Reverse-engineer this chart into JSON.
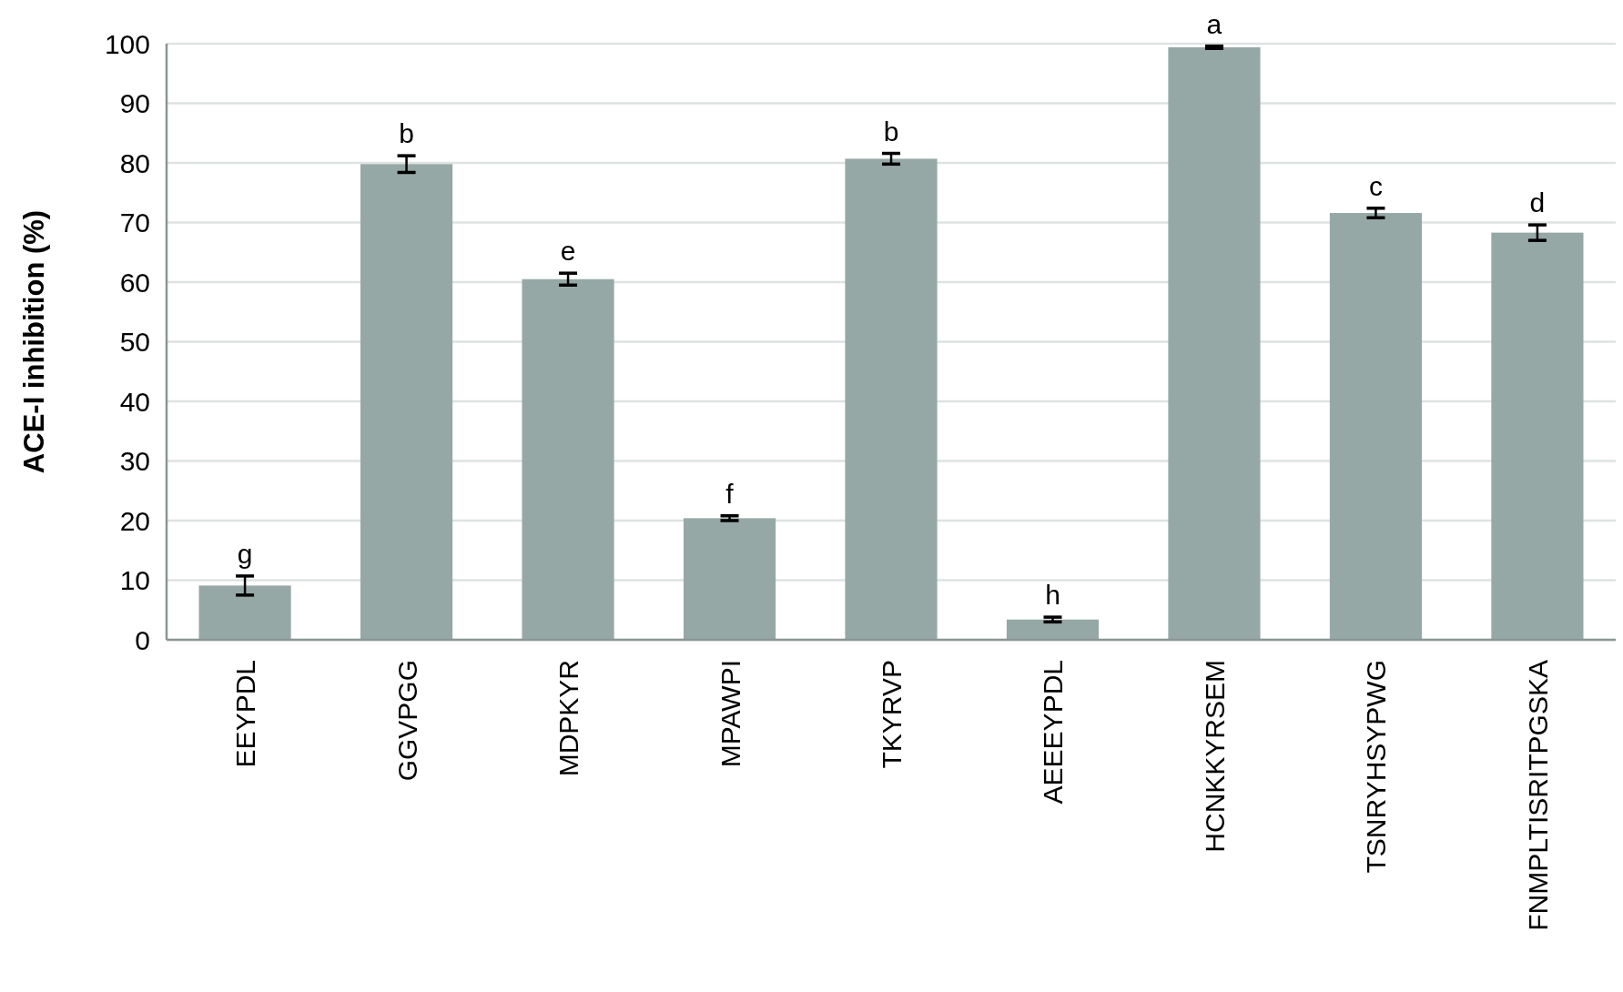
{
  "chart_data": {
    "type": "bar",
    "ylabel": "ACE-I inhibition (%)",
    "categories": [
      "EEYPDL",
      "GGVPGG",
      "MDPKYR",
      "MPAWPI",
      "TKYRVP",
      "AEEEYPDL",
      "HCNKKYRSEM",
      "TSNRYHSYPWG",
      "FNMPLTISRITPGSKA"
    ],
    "values": [
      9.1,
      79.8,
      60.5,
      20.4,
      80.7,
      3.4,
      99.4,
      71.6,
      68.3
    ],
    "errors": [
      1.6,
      1.4,
      1.0,
      0.4,
      0.9,
      0.4,
      0.2,
      0.8,
      1.3
    ],
    "color": "#96a8a6",
    "ylim": [
      0,
      100
    ],
    "yticks": [
      0,
      10,
      20,
      30,
      40,
      50,
      60,
      70,
      80,
      90,
      100
    ],
    "grid": "y",
    "annotations": [
      {
        "text": "g",
        "x": "EEYPDL",
        "y": 10.7
      },
      {
        "text": "b",
        "x": "GGVPGG",
        "y": 81.2
      },
      {
        "text": "e",
        "x": "MDPKYR",
        "y": 61.5
      },
      {
        "text": "f",
        "x": "MPAWPI",
        "y": 20.8
      },
      {
        "text": "b",
        "x": "TKYRVP",
        "y": 81.6
      },
      {
        "text": "h",
        "x": "AEEEYPDL",
        "y": 3.8
      },
      {
        "text": "a",
        "x": "HCNKKYRSEM",
        "y": 99.6
      },
      {
        "text": "c",
        "x": "TSNRYHSYPWG",
        "y": 72.4
      },
      {
        "text": "d",
        "x": "FNMPLTISRITPGSKA",
        "y": 69.6
      }
    ]
  }
}
